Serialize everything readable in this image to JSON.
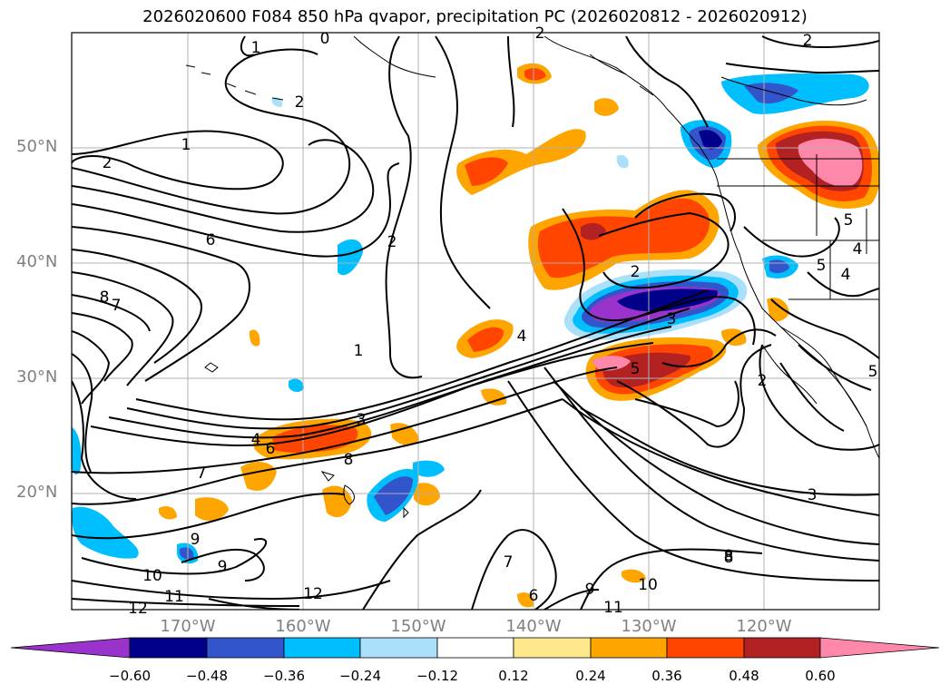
{
  "title": "2026020600 F084 850 hPa qvapor, precipitation PC (2026020812 - 2026020912)",
  "lat_labels": [
    "50°N",
    "40°N",
    "30°N",
    "20°N"
  ],
  "lon_labels": [
    "170°W",
    "160°W",
    "150°W",
    "140°W",
    "130°W",
    "120°W"
  ],
  "colorbar": {
    "colors": [
      "#9933cc",
      "#00008b",
      "#3355cc",
      "#00bfff",
      "#aae0fa",
      "#ffffff",
      "#ffe88c",
      "#ffa500",
      "#ff4500",
      "#b22222",
      "#ff88aa"
    ],
    "ticks": [
      "−0.60",
      "−0.48",
      "−0.36",
      "−0.24",
      "−0.12",
      "0.12",
      "0.24",
      "0.36",
      "0.48",
      "0.60"
    ]
  },
  "contour_labels": [
    "0",
    "1",
    "2",
    "1",
    "2",
    "2",
    "6",
    "8",
    "7",
    "2",
    "1",
    "4",
    "3",
    "4",
    "6",
    "7",
    "8",
    "8",
    "9",
    "9",
    "10",
    "11",
    "12",
    "12",
    "7",
    "6",
    "9",
    "11",
    "10",
    "8",
    "3",
    "2",
    "5",
    "5",
    "4",
    "3",
    "5",
    "4",
    "5",
    "2",
    "2"
  ]
}
